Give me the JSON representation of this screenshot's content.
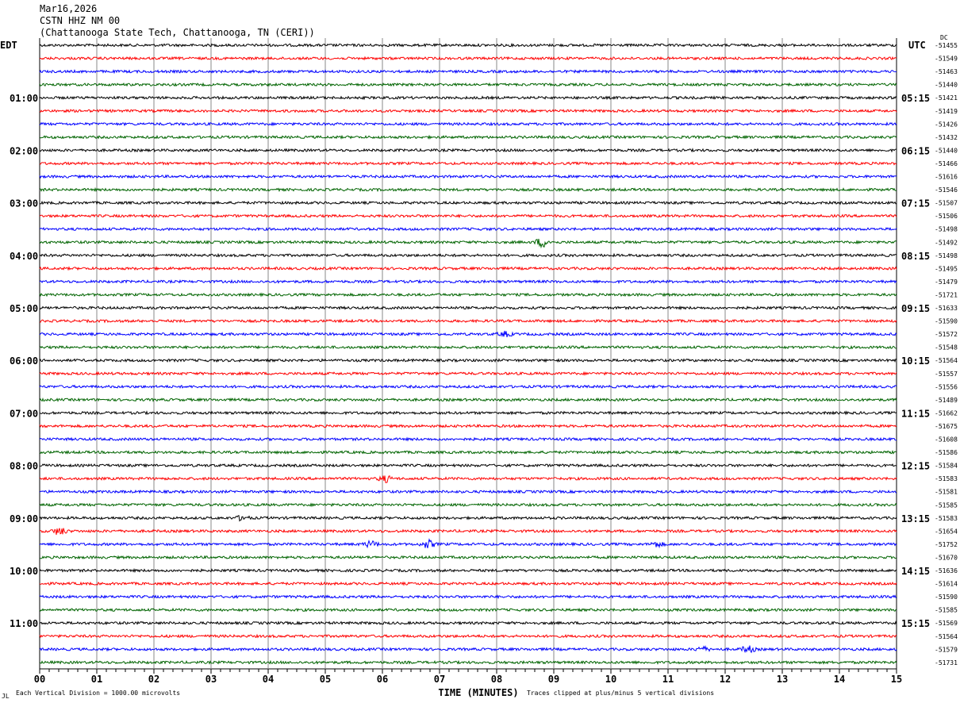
{
  "header": {
    "date": "Mar16,2026",
    "station": "CSTN HHZ NM 00",
    "location": "(Chattanooga State Tech, Chattanooga, TN (CERI))"
  },
  "chart_data": {
    "type": "line",
    "title": "CSTN HHZ NM 00",
    "left_axis_title": "EDT",
    "right_axis_title": "UTC",
    "dc_title": "DC",
    "xlabel": "TIME (MINUTES)",
    "xlim": [
      0,
      15
    ],
    "x_ticks": [
      "00",
      "01",
      "02",
      "03",
      "04",
      "05",
      "06",
      "07",
      "08",
      "09",
      "10",
      "11",
      "12",
      "13",
      "14",
      "15"
    ],
    "grid": true,
    "trace_colors": [
      "#000000",
      "#ff0000",
      "#0000ff",
      "#006400"
    ],
    "left_labels": [
      "",
      "01:00",
      "02:00",
      "03:00",
      "04:00",
      "05:00",
      "06:00",
      "07:00",
      "08:00",
      "09:00",
      "10:00",
      "11:00"
    ],
    "right_labels": [
      "",
      "05:15",
      "06:15",
      "07:15",
      "08:15",
      "09:15",
      "10:15",
      "11:15",
      "12:15",
      "13:15",
      "14:15",
      "15:15"
    ],
    "dc_offsets": [
      -51455,
      -51549,
      -51463,
      -51440,
      -51421,
      -51419,
      -51426,
      -51432,
      -51440,
      -51466,
      -51616,
      -51546,
      -51507,
      -51506,
      -51498,
      -51492,
      -51498,
      -51495,
      -51479,
      -51721,
      -51633,
      -51590,
      -51572,
      -51548,
      -51564,
      -51557,
      -51556,
      -51489,
      -51662,
      -51675,
      -51608,
      -51586,
      -51584,
      -51583,
      -51581,
      -51585,
      -51583,
      -51654,
      -51752,
      -51670,
      -51636,
      -51614,
      -51590,
      -51585,
      -51569,
      -51564,
      -51579,
      -51731
    ],
    "events": [
      {
        "trace": 15,
        "minute": 8.8,
        "amplitude": 3
      },
      {
        "trace": 22,
        "minute": 8.15,
        "amplitude": 1.5
      },
      {
        "trace": 33,
        "minute": 6.05,
        "amplitude": 2
      },
      {
        "trace": 36,
        "minute": 3.55,
        "amplitude": 1.5
      },
      {
        "trace": 37,
        "minute": 0.35,
        "amplitude": 2.5
      },
      {
        "trace": 38,
        "minute": 5.8,
        "amplitude": 2
      },
      {
        "trace": 38,
        "minute": 6.8,
        "amplitude": 2.5
      },
      {
        "trace": 38,
        "minute": 10.8,
        "amplitude": 1.5
      },
      {
        "trace": 46,
        "minute": 11.6,
        "amplitude": 1.5
      },
      {
        "trace": 46,
        "minute": 12.4,
        "amplitude": 2
      }
    ]
  },
  "footer": {
    "scale_note": "Each Vertical Division = 1000.00 microvolts",
    "clip_note": "Traces clipped at plus/minus 5 vertical divisions",
    "corner_mark": "JL"
  }
}
